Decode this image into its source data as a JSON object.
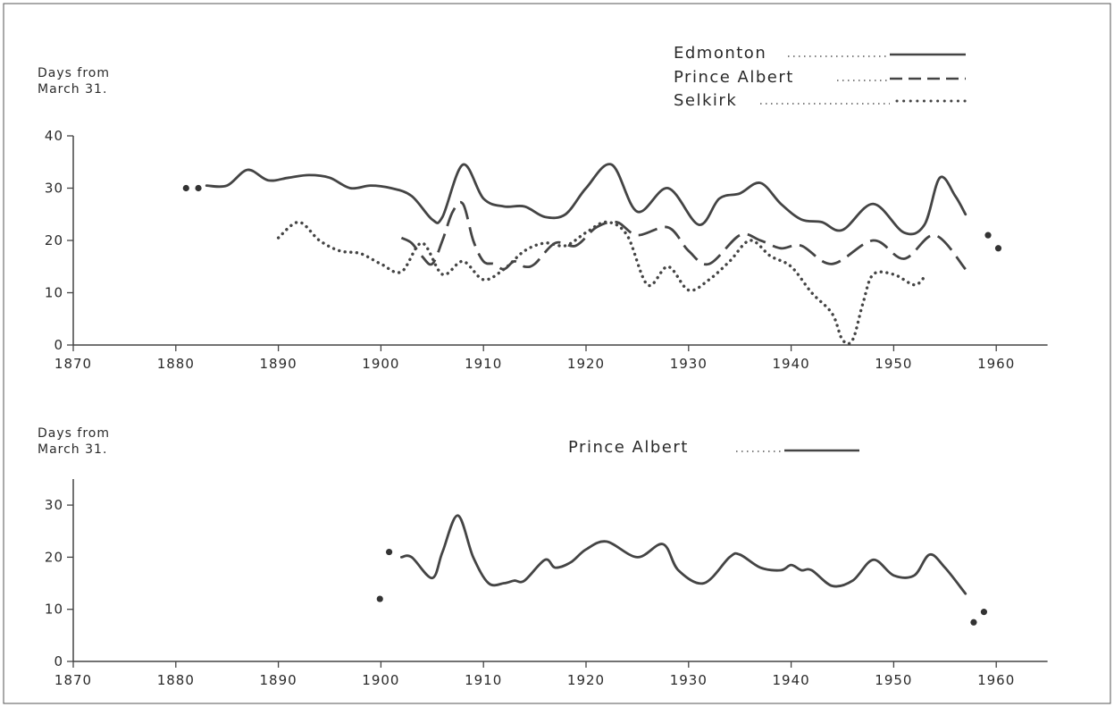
{
  "chart_data": [
    {
      "type": "line",
      "ylabel_lines": [
        "Days from",
        "March 31."
      ],
      "xlim": [
        1870,
        1965
      ],
      "ylim": [
        0,
        40
      ],
      "x_ticks": [
        1870,
        1880,
        1890,
        1900,
        1910,
        1920,
        1930,
        1940,
        1950,
        1960
      ],
      "y_ticks": [
        0,
        10,
        20,
        30,
        40
      ],
      "legend_position": "top-right",
      "series": [
        {
          "name": "Edmonton",
          "style": "solid",
          "x": [
            1883,
            1885,
            1887,
            1889,
            1891,
            1893,
            1895,
            1897,
            1899,
            1901,
            1903,
            1905,
            1906,
            1908,
            1910,
            1912,
            1914,
            1916,
            1918,
            1920,
            1922.5,
            1925,
            1928,
            1931,
            1933,
            1935,
            1937,
            1939,
            1941,
            1943,
            1945,
            1948,
            1951,
            1953,
            1954.5,
            1956,
            1957
          ],
          "y": [
            30.5,
            30.5,
            33.5,
            31.5,
            32,
            32.5,
            32,
            30,
            30.5,
            30,
            28.5,
            24,
            24.5,
            34.5,
            28,
            26.5,
            26.5,
            24.5,
            25,
            30,
            34.5,
            25.5,
            30,
            23,
            28,
            29,
            31,
            27,
            24,
            23.5,
            22,
            27,
            21.5,
            23,
            32,
            28.5,
            25
          ]
        },
        {
          "name": "Prince Albert",
          "style": "dashed",
          "x": [
            1902,
            1903,
            1904,
            1905,
            1906,
            1907,
            1908,
            1909,
            1910,
            1911,
            1912,
            1913,
            1914,
            1915,
            1917,
            1919,
            1921,
            1923,
            1925,
            1928,
            1930,
            1932,
            1935,
            1937,
            1939,
            1941,
            1944,
            1948,
            1951,
            1954,
            1957
          ],
          "y": [
            20.5,
            19.5,
            17,
            15.5,
            20,
            25.5,
            27,
            20,
            16,
            15.5,
            14.5,
            16,
            15,
            15.5,
            19.5,
            19,
            22.5,
            23.5,
            21,
            22.5,
            18,
            15.5,
            21,
            20,
            18.5,
            19,
            15.5,
            20,
            16.5,
            21,
            14.5
          ]
        },
        {
          "name": "Selkirk",
          "style": "dotted",
          "x": [
            1890,
            1892,
            1894,
            1896,
            1898,
            1900,
            1902,
            1904,
            1906,
            1908,
            1910,
            1912,
            1914,
            1916,
            1918,
            1920,
            1922,
            1924,
            1926,
            1928,
            1930,
            1932,
            1934,
            1936,
            1938,
            1940,
            1942,
            1944,
            1945,
            1946,
            1947,
            1948,
            1950,
            1952,
            1953
          ],
          "y": [
            20.5,
            23.5,
            20,
            18,
            17.5,
            15.5,
            14,
            19.5,
            13.5,
            16,
            12.5,
            14.5,
            18,
            19.5,
            19,
            21.5,
            23.5,
            21,
            11.5,
            15,
            10.5,
            12.5,
            16,
            20,
            17,
            15,
            10,
            6,
            1,
            1,
            8,
            13.5,
            13.5,
            11.5,
            13
          ]
        }
      ],
      "isolated_points": {
        "x": [
          1881,
          1882.2,
          1959.2,
          1960.2
        ],
        "y": [
          30,
          30,
          21,
          18.5
        ]
      }
    },
    {
      "type": "line",
      "ylabel_lines": [
        "Days from",
        "March 31."
      ],
      "xlim": [
        1870,
        1965
      ],
      "ylim": [
        0,
        35
      ],
      "x_ticks": [
        1870,
        1880,
        1890,
        1900,
        1910,
        1920,
        1930,
        1940,
        1950,
        1960
      ],
      "y_ticks": [
        0,
        10,
        20,
        30
      ],
      "legend_position": "top-right",
      "series": [
        {
          "name": "Prince Albert",
          "style": "solid",
          "x": [
            1902,
            1903,
            1905,
            1906,
            1907.5,
            1909,
            1910.5,
            1912,
            1913,
            1914,
            1916,
            1917,
            1918.5,
            1920,
            1922,
            1925,
            1927.5,
            1929,
            1931.5,
            1934,
            1935,
            1937,
            1939,
            1940,
            1941,
            1942,
            1944,
            1946,
            1948,
            1950,
            1952,
            1953.5,
            1955,
            1957
          ],
          "y": [
            20,
            20,
            16,
            21,
            28,
            20,
            15,
            15,
            15.5,
            15.5,
            19.5,
            18,
            19,
            21.5,
            23,
            20,
            22.5,
            17.5,
            15,
            20,
            20.5,
            18,
            17.5,
            18.5,
            17.5,
            17.5,
            14.5,
            15.5,
            19.5,
            16.5,
            16.5,
            20.5,
            18,
            13
          ]
        }
      ],
      "isolated_points": {
        "x": [
          1899.9,
          1900.8,
          1957.8,
          1958.8
        ],
        "y": [
          12,
          21,
          7.5,
          9.5
        ]
      }
    }
  ]
}
